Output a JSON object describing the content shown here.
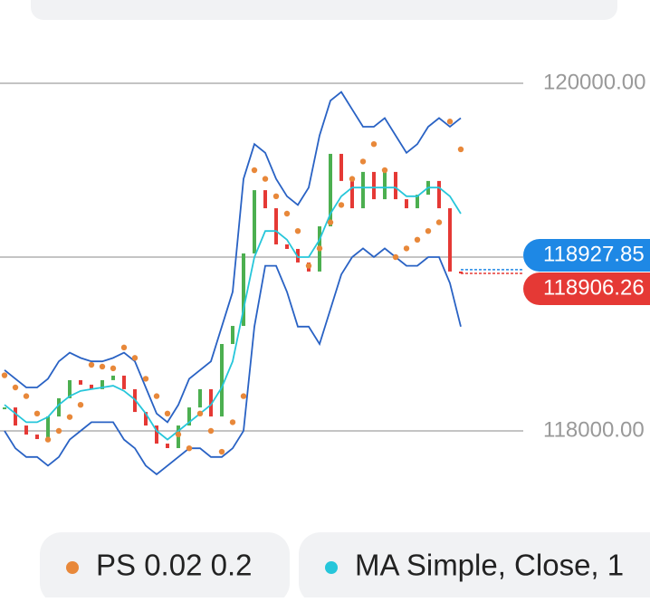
{
  "chart_data": {
    "type": "candlestick",
    "categories": [
      null,
      null,
      null,
      null,
      null,
      null,
      null,
      null,
      null,
      null,
      null,
      null,
      null,
      null,
      null,
      null,
      null,
      null,
      null,
      null,
      null,
      null,
      null,
      null,
      null,
      null,
      null,
      null,
      null,
      null,
      null,
      null,
      null,
      null,
      null,
      null,
      null,
      null,
      null,
      null,
      null,
      null,
      null
    ],
    "values": [
      118135,
      118031,
      117979,
      117953,
      118083,
      118188,
      118292,
      118266,
      118240,
      118292,
      118318,
      118240,
      118109,
      118031,
      117927,
      117901,
      118031,
      118135,
      118240,
      118083,
      118500,
      118604,
      119021,
      119385,
      119281,
      119073,
      119047,
      118969,
      118917,
      119177,
      119594,
      119438,
      119281,
      119490,
      119333,
      119490,
      119333,
      119281,
      119359,
      119438,
      119281,
      118917,
      118906
    ],
    "up_color": "#4caf50",
    "down_color": "#e53935",
    "bands": [
      {
        "color": "#2962c4",
        "values": [
          118350,
          118300,
          118250,
          118250,
          118300,
          118400,
          118450,
          118420,
          118400,
          118400,
          118420,
          118450,
          118400,
          118250,
          118100,
          118050,
          118150,
          118300,
          118350,
          118400,
          118600,
          118800,
          119450,
          119650,
          119600,
          119450,
          119350,
          119300,
          119400,
          119700,
          119900,
          119950,
          119850,
          119750,
          119750,
          119800,
          119700,
          119600,
          119650,
          119750,
          119800,
          119750,
          119800
        ]
      },
      {
        "color": "#2962c4",
        "values": [
          118000,
          117900,
          117850,
          117850,
          117800,
          117850,
          117950,
          118000,
          118050,
          118050,
          118050,
          117950,
          117900,
          117800,
          117750,
          117800,
          117850,
          117900,
          117900,
          117850,
          117850,
          117900,
          118000,
          118600,
          118950,
          118950,
          118800,
          118600,
          118600,
          118500,
          118700,
          118900,
          119000,
          119050,
          119000,
          119050,
          119000,
          118950,
          118950,
          119000,
          119000,
          118850,
          118600
        ]
      },
      {
        "color": "#26c6da",
        "values": [
          118150,
          118100,
          118050,
          118050,
          118080,
          118150,
          118200,
          118230,
          118240,
          118250,
          118260,
          118230,
          118180,
          118100,
          118000,
          117950,
          118000,
          118050,
          118100,
          118150,
          118250,
          118400,
          118700,
          119000,
          119150,
          119150,
          119100,
          119000,
          119000,
          119100,
          119250,
          119350,
          119400,
          119400,
          119400,
          119400,
          119400,
          119350,
          119350,
          119400,
          119400,
          119350,
          119250
        ]
      }
    ],
    "sar": {
      "color": "#e8883a",
      "values": [
        118320,
        118250,
        118200,
        118100,
        117950,
        118000,
        118080,
        118150,
        118380,
        118370,
        118360,
        118480,
        118420,
        118300,
        118200,
        118100,
        117980,
        117900,
        118100,
        118000,
        117880,
        118050,
        118200,
        119500,
        119450,
        119350,
        119250,
        119150,
        118950,
        119050,
        119200,
        119300,
        119450,
        119550,
        119650,
        119500,
        119000,
        119050,
        119100,
        119150,
        119200,
        119780,
        119620
      ]
    },
    "ylim": [
      117850,
      120200
    ],
    "yticks": [
      {
        "value": 118000,
        "label": "118000.00"
      },
      119000,
      {
        "value": 120000,
        "label": "120000.00"
      }
    ],
    "grid": true,
    "price_lines": [
      {
        "value": 118927.85,
        "label": "118927.85",
        "color": "#1e88e5"
      },
      {
        "value": 118906.26,
        "label": "118906.26",
        "color": "#e53935"
      }
    ],
    "legend": [
      {
        "name": "PS 0.02 0.2",
        "color": "#e8883a"
      },
      {
        "name": "MA Simple, Close, 1",
        "color": "#26c6da"
      }
    ]
  }
}
